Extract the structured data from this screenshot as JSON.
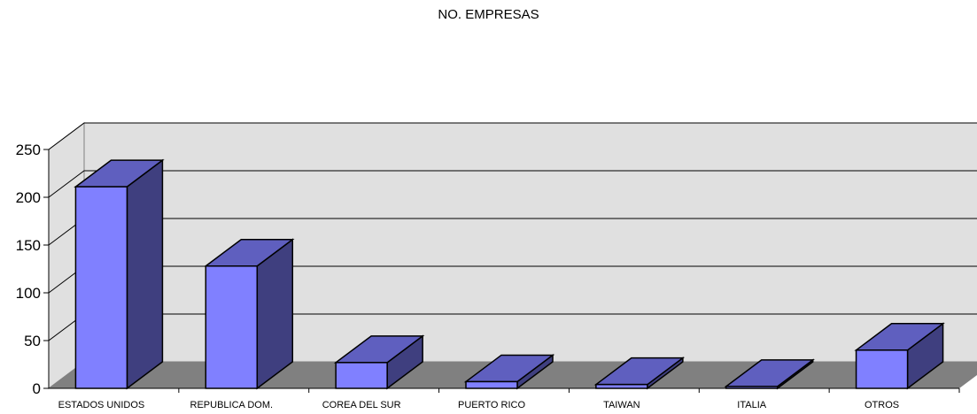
{
  "chart_data": {
    "type": "bar",
    "title": "NO. EMPRESAS",
    "xlabel": "",
    "ylabel": "",
    "categories": [
      "ESTADOS UNIDOS",
      "REPUBLICA DOM.",
      "COREA DEL SUR",
      "PUERTO RICO",
      "TAIWAN",
      "ITALIA",
      "OTROS"
    ],
    "values": [
      211,
      128,
      27,
      7,
      4,
      2,
      40
    ],
    "ylim": [
      0,
      250
    ],
    "yticks": [
      "0",
      "50",
      "100",
      "150",
      "200",
      "250"
    ],
    "grid": true,
    "legend": "none",
    "style": "3d-column",
    "colors": {
      "bar_front": "#8080ff",
      "bar_side": "#3f3f7f",
      "bar_top": "#5f5fbf",
      "wall": "#e0e0e0",
      "floor": "#808080",
      "gridline": "#000000"
    }
  }
}
